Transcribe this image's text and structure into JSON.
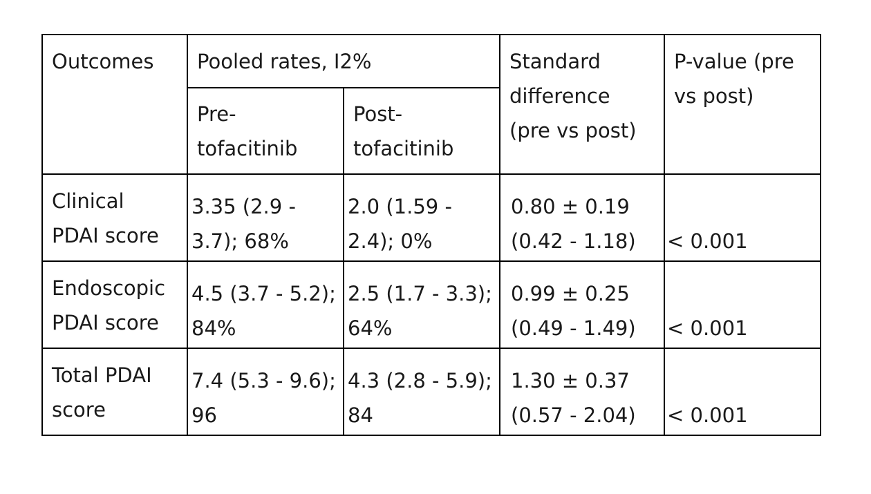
{
  "table": {
    "header": {
      "outcomes": "Outcomes",
      "pooled_rates": "Pooled rates, I2%",
      "pre_line1": "Pre-",
      "pre_line2": "tofacitinib",
      "post_line1": "Post-",
      "post_line2": "tofacitinib",
      "std_diff_line1": "Standard",
      "std_diff_line2": "difference",
      "std_diff_line3": "(pre vs post)",
      "pvalue_line1": "P-value (pre",
      "pvalue_line2": "vs post)"
    },
    "rows": [
      {
        "outcome_line1": "Clinical",
        "outcome_line2": "PDAI score",
        "pre_line1": "3.35 (2.9 -",
        "pre_line2": "3.7); 68%",
        "post_line1": "2.0 (1.59 -",
        "post_line2": "2.4); 0%",
        "std_line1": "0.80 ± 0.19",
        "std_line2": "(0.42 - 1.18)",
        "pvalue": "< 0.001"
      },
      {
        "outcome_line1": "Endoscopic",
        "outcome_line2": "PDAI score",
        "pre_line1": "4.5 (3.7 - 5.2);",
        "pre_line2": "84%",
        "post_line1": "2.5 (1.7 - 3.3);",
        "post_line2": "64%",
        "std_line1": "0.99 ± 0.25",
        "std_line2": "(0.49 - 1.49)",
        "pvalue": "< 0.001"
      },
      {
        "outcome_line1": "Total PDAI",
        "outcome_line2": "score",
        "pre_line1": "7.4 (5.3 - 9.6);",
        "pre_line2": "96",
        "post_line1": "4.3 (2.8 - 5.9);",
        "post_line2": "84",
        "std_line1": "1.30 ± 0.37",
        "std_line2": "(0.57 - 2.04)",
        "pvalue": "< 0.001"
      }
    ]
  }
}
